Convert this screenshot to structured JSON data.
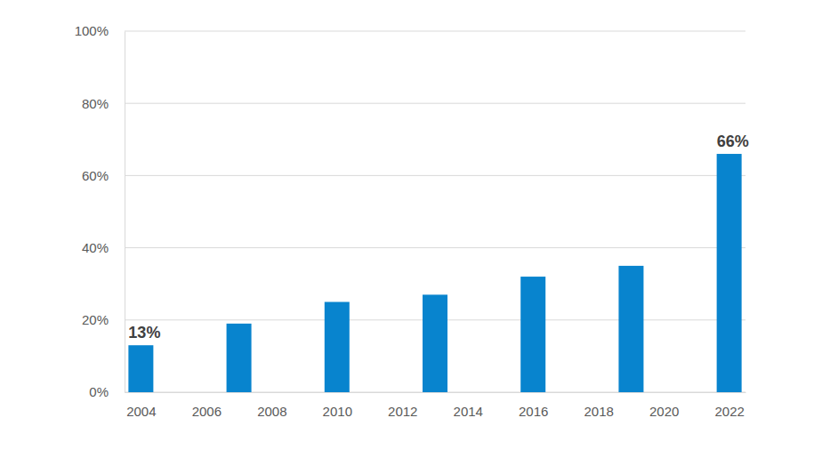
{
  "chart_data": {
    "type": "bar",
    "x": [
      2004,
      2007,
      2010,
      2013,
      2016,
      2019,
      2022
    ],
    "values": [
      13,
      19,
      25,
      27,
      32,
      35,
      66
    ],
    "value_labels": [
      "13%",
      null,
      null,
      null,
      null,
      null,
      "66%"
    ],
    "data_labels": true,
    "color": "#0884ce",
    "xlim": [
      2003.5,
      2022.5
    ],
    "xticks": [
      2004,
      2006,
      2008,
      2010,
      2012,
      2014,
      2016,
      2018,
      2020,
      2022
    ],
    "ylim": [
      0,
      100
    ],
    "yticks": [
      {
        "value": 0,
        "label": "0%"
      },
      {
        "value": 20,
        "label": "20%"
      },
      {
        "value": 40,
        "label": "40%"
      },
      {
        "value": 60,
        "label": "60%"
      },
      {
        "value": 80,
        "label": "80%"
      },
      {
        "value": 100,
        "label": "100%"
      }
    ],
    "grid": true
  }
}
